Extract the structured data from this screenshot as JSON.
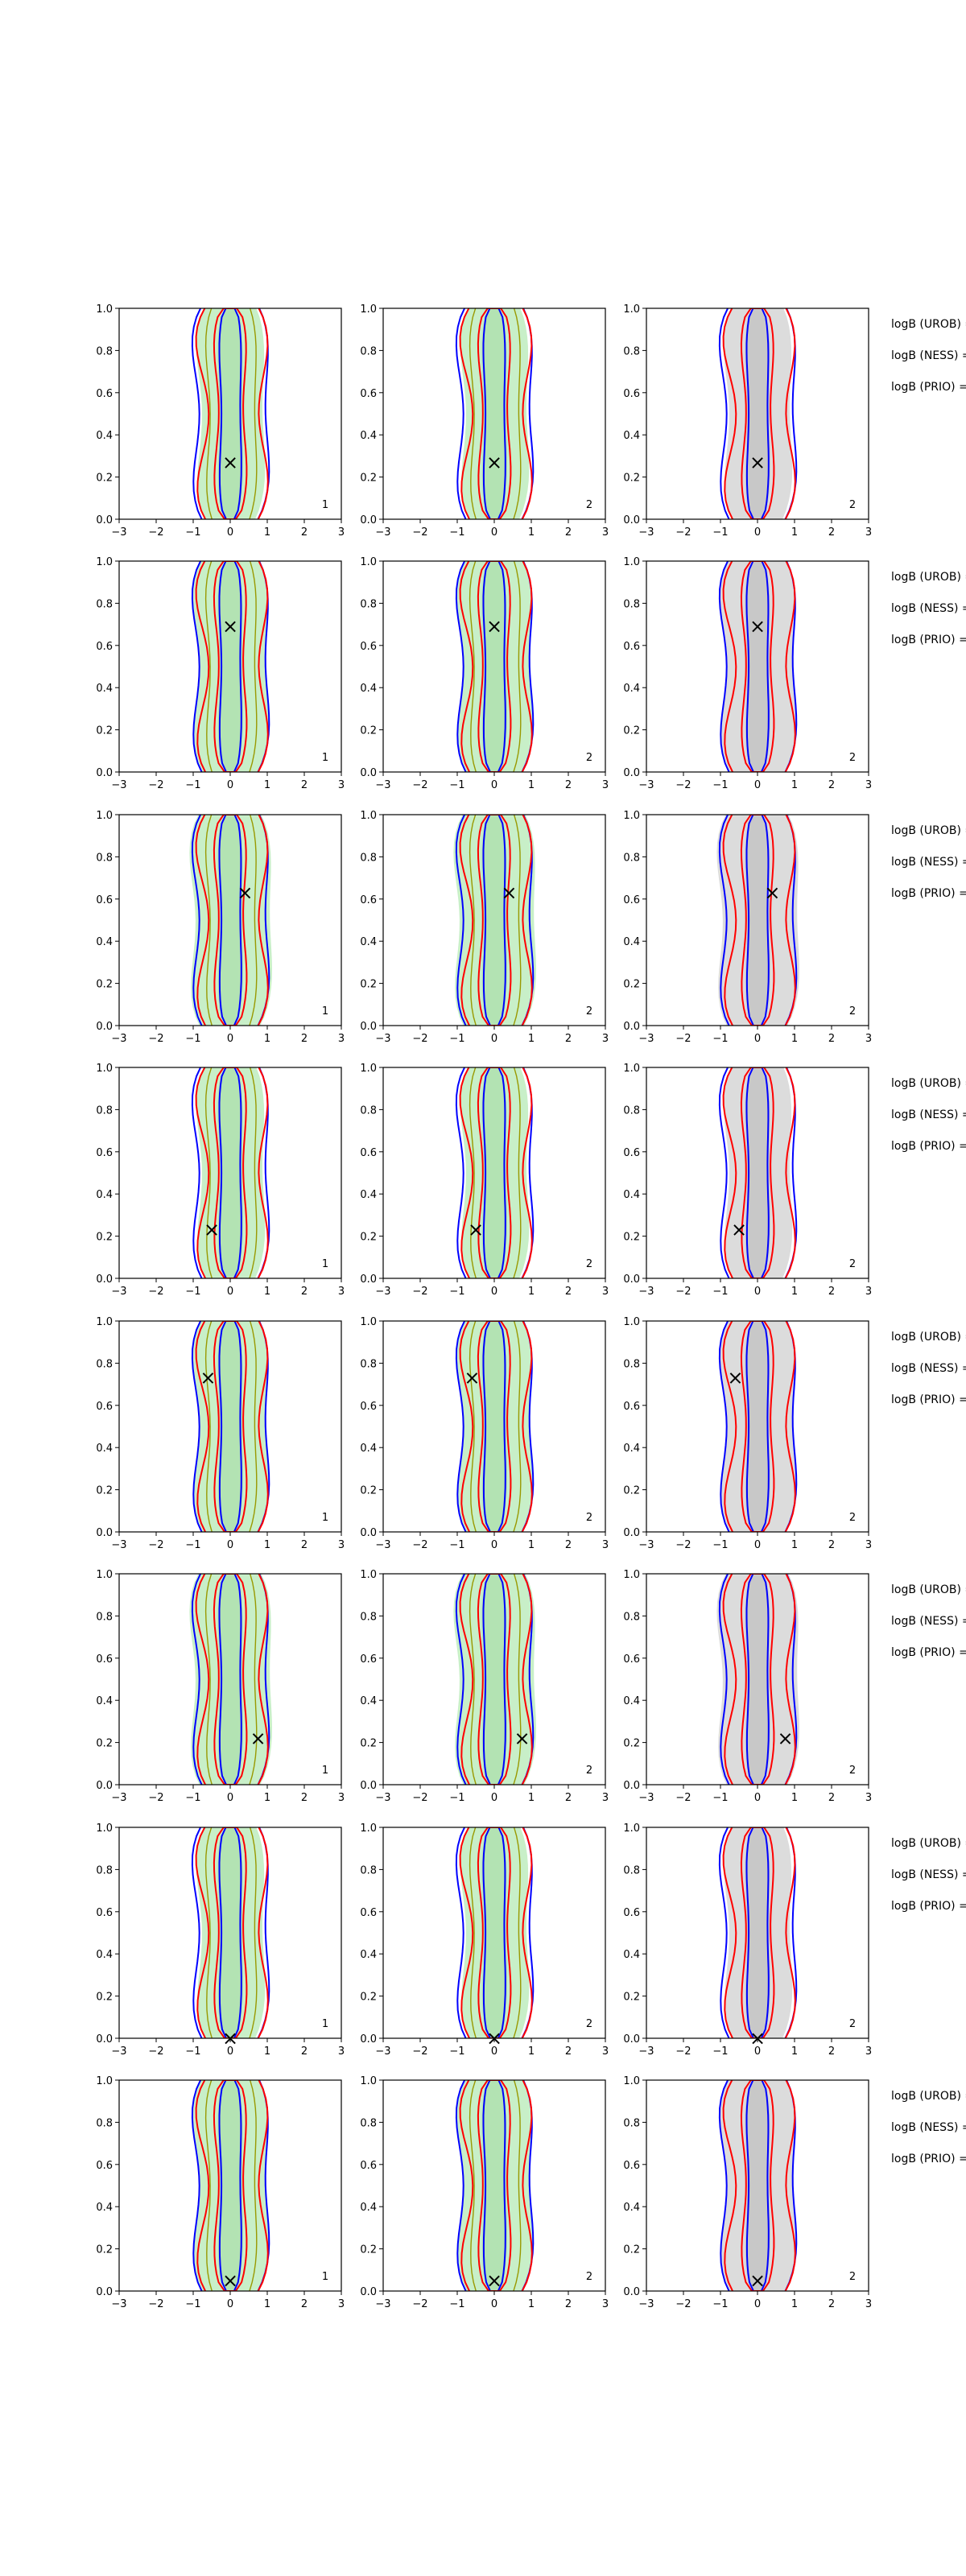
{
  "figure": {
    "rows": 8,
    "cols": 3,
    "colors": {
      "fill_green": "#c8efc8",
      "fill_gray": "#dcdcdc",
      "contour_blue": "#0000ff",
      "contour_red": "#ff0000",
      "contour_olive": "#999900",
      "axis": "#000000"
    },
    "panel_type_labels": [
      "1",
      "2",
      "2"
    ],
    "side_labels": [
      "logB (UROB) =",
      "logB (NESS) =",
      "logB (PRIO) ="
    ]
  },
  "chart_data": {
    "type": "contour",
    "xlim": [
      -3,
      3
    ],
    "ylim": [
      0,
      1
    ],
    "x_ticks": [
      "−3",
      "−2",
      "−1",
      "0",
      "1",
      "2",
      "3"
    ],
    "y_ticks": [
      "0.0",
      "0.2",
      "0.4",
      "0.6",
      "0.8",
      "1.0"
    ],
    "marker_symbol": "×",
    "rows": [
      {
        "marker": {
          "x": 0.0,
          "y": 0.27
        }
      },
      {
        "marker": {
          "x": 0.0,
          "y": 0.69
        }
      },
      {
        "marker": {
          "x": 0.4,
          "y": 0.63
        }
      },
      {
        "marker": {
          "x": -0.5,
          "y": 0.23
        }
      },
      {
        "marker": {
          "x": -0.6,
          "y": 0.73
        }
      },
      {
        "marker": {
          "x": 0.75,
          "y": 0.22
        }
      },
      {
        "marker": {
          "x": 0.0,
          "y": 0.0
        }
      },
      {
        "marker": {
          "x": 0.0,
          "y": 0.05
        }
      }
    ]
  }
}
